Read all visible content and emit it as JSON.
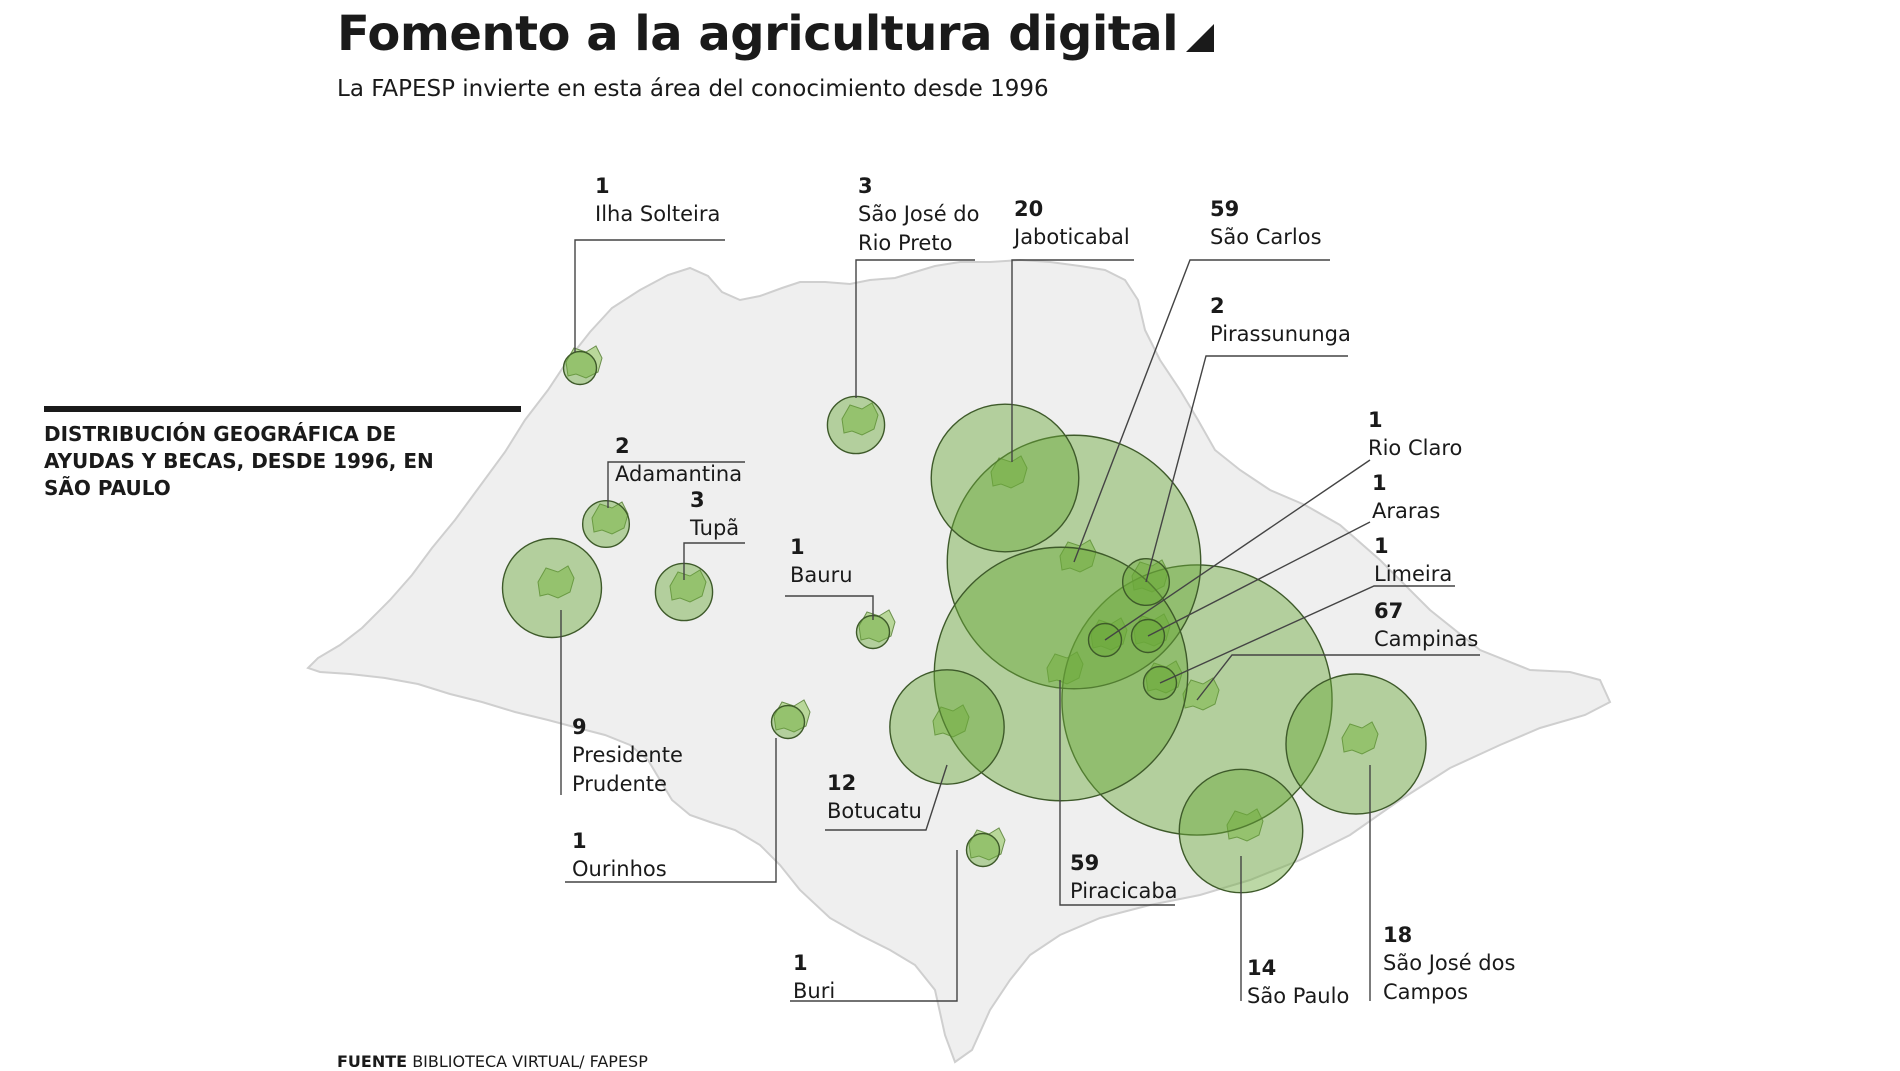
{
  "header": {
    "title": "Fomento a la agricultura digital",
    "subtitle": "La FAPESP invierte en esta área del conocimiento desde 1996"
  },
  "legend": {
    "text": "DISTRIBUCIÓN GEOGRÁFICA DE AYUDAS Y BECAS, DESDE 1996, EN SÃO PAULO"
  },
  "source": {
    "label": "FUENTE",
    "text": "BIBLIOTECA VIRTUAL/ FAPESP"
  },
  "colors": {
    "bubble": "#6aa83a",
    "bubble_stroke": "#3e5a2a",
    "state_fill": "#efefef",
    "state_stroke": "#cfcfcf"
  },
  "cities": [
    {
      "id": "ilha-solteira",
      "count": "1",
      "name": [
        "Ilha Solteira"
      ],
      "value": 1
    },
    {
      "id": "sao-jose-do-rio-preto",
      "count": "3",
      "name": [
        "São José do",
        "Rio Preto"
      ],
      "value": 3
    },
    {
      "id": "jaboticabal",
      "count": "20",
      "name": [
        "Jaboticabal"
      ],
      "value": 20
    },
    {
      "id": "sao-carlos",
      "count": "59",
      "name": [
        "São Carlos"
      ],
      "value": 59
    },
    {
      "id": "pirassununga",
      "count": "2",
      "name": [
        "Pirassununga"
      ],
      "value": 2
    },
    {
      "id": "rio-claro",
      "count": "1",
      "name": [
        "Rio Claro"
      ],
      "value": 1
    },
    {
      "id": "araras",
      "count": "1",
      "name": [
        "Araras"
      ],
      "value": 1
    },
    {
      "id": "limeira",
      "count": "1",
      "name": [
        "Limeira"
      ],
      "value": 1
    },
    {
      "id": "campinas",
      "count": "67",
      "name": [
        "Campinas"
      ],
      "value": 67
    },
    {
      "id": "adamantina",
      "count": "2",
      "name": [
        "Adamantina"
      ],
      "value": 2
    },
    {
      "id": "tupa",
      "count": "3",
      "name": [
        "Tupã"
      ],
      "value": 3
    },
    {
      "id": "bauru",
      "count": "1",
      "name": [
        "Bauru"
      ],
      "value": 1
    },
    {
      "id": "presidente-prudente",
      "count": "9",
      "name": [
        "Presidente",
        "Prudente"
      ],
      "value": 9
    },
    {
      "id": "ourinhos",
      "count": "1",
      "name": [
        "Ourinhos"
      ],
      "value": 1
    },
    {
      "id": "botucatu",
      "count": "12",
      "name": [
        "Botucatu"
      ],
      "value": 12
    },
    {
      "id": "piracicaba",
      "count": "59",
      "name": [
        "Piracicaba"
      ],
      "value": 59
    },
    {
      "id": "buri",
      "count": "1",
      "name": [
        "Buri"
      ],
      "value": 1
    },
    {
      "id": "sao-paulo",
      "count": "14",
      "name": [
        "São Paulo"
      ],
      "value": 14
    },
    {
      "id": "sao-jose-dos-campos",
      "count": "18",
      "name": [
        "São José dos",
        "Campos"
      ],
      "value": 18
    }
  ]
}
